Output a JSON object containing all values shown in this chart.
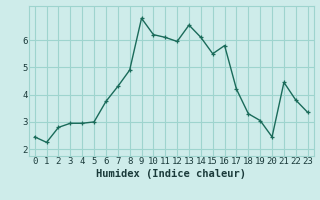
{
  "x": [
    0,
    1,
    2,
    3,
    4,
    5,
    6,
    7,
    8,
    9,
    10,
    11,
    12,
    13,
    14,
    15,
    16,
    17,
    18,
    19,
    20,
    21,
    22,
    23
  ],
  "y": [
    2.45,
    2.25,
    2.8,
    2.95,
    2.95,
    3.0,
    3.75,
    4.3,
    4.9,
    6.8,
    6.2,
    6.1,
    5.95,
    6.55,
    6.1,
    5.5,
    5.8,
    4.2,
    3.3,
    3.05,
    2.45,
    4.45,
    3.8,
    3.35
  ],
  "xlabel": "Humidex (Indice chaleur)",
  "line_color": "#1a6b5a",
  "bg_color": "#ceecea",
  "grid_color": "#9ed4ce",
  "ylim": [
    1.75,
    7.25
  ],
  "xlim": [
    -0.5,
    23.5
  ],
  "xticks": [
    0,
    1,
    2,
    3,
    4,
    5,
    6,
    7,
    8,
    9,
    10,
    11,
    12,
    13,
    14,
    15,
    16,
    17,
    18,
    19,
    20,
    21,
    22,
    23
  ],
  "yticks": [
    2,
    3,
    4,
    5,
    6
  ],
  "marker": "+",
  "markersize": 3.5,
  "linewidth": 1.0,
  "xlabel_fontsize": 7.5,
  "tick_fontsize": 6.5
}
